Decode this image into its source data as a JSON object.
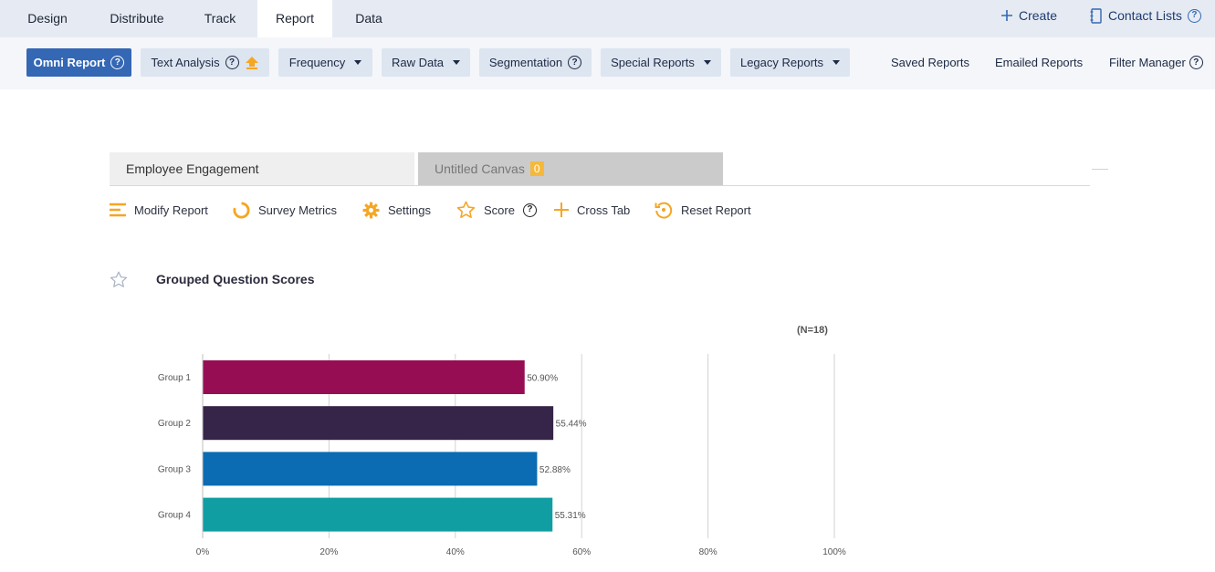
{
  "topnav": {
    "tabs": [
      "Design",
      "Distribute",
      "Track",
      "Report",
      "Data"
    ],
    "active": "Report",
    "create_label": "Create",
    "contact_lists_label": "Contact Lists"
  },
  "subnav": {
    "omni_report": "Omni Report",
    "text_analysis": "Text Analysis",
    "frequency": "Frequency",
    "raw_data": "Raw Data",
    "segmentation": "Segmentation",
    "special_reports": "Special Reports",
    "legacy_reports": "Legacy Reports",
    "saved_reports": "Saved Reports",
    "emailed_reports": "Emailed Reports",
    "filter_manager": "Filter Manager"
  },
  "canvas_tabs": {
    "first": "Employee Engagement",
    "second": "Untitled Canvas",
    "second_badge": "0"
  },
  "toolbar": {
    "modify_report": "Modify Report",
    "survey_metrics": "Survey Metrics",
    "settings": "Settings",
    "score": "Score",
    "cross_tab": "Cross Tab",
    "reset_report": "Reset Report"
  },
  "report": {
    "title": "Grouped Question Scores",
    "n_label": "(N=18)"
  },
  "colors": {
    "accent": "#f5a623",
    "primary_button": "#3467b4"
  },
  "chart_data": {
    "type": "bar",
    "orientation": "horizontal",
    "categories": [
      "Group 1",
      "Group 2",
      "Group 3",
      "Group 4"
    ],
    "values": [
      50.9,
      55.44,
      52.88,
      55.31
    ],
    "value_labels": [
      "50.90%",
      "55.44%",
      "52.88%",
      "55.31%"
    ],
    "bar_colors": [
      "#970d54",
      "#362449",
      "#0b6cb3",
      "#109ea3"
    ],
    "xlim": [
      0,
      100
    ],
    "x_ticks": [
      "0%",
      "20%",
      "40%",
      "60%",
      "80%",
      "100%"
    ],
    "grid": true
  }
}
